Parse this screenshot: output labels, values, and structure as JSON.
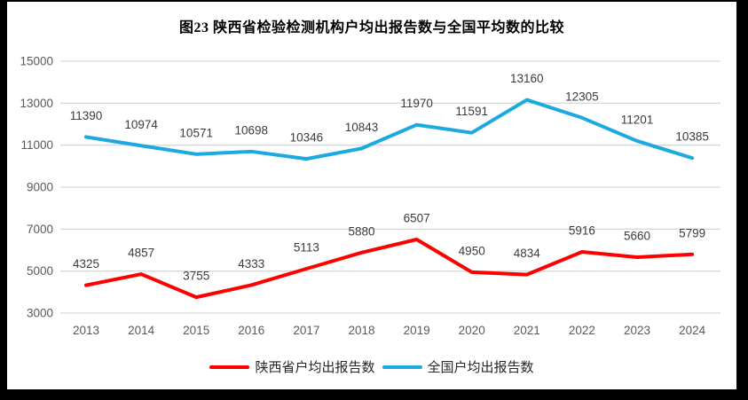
{
  "chart_data": {
    "type": "line",
    "title": "图23 陕西省检验检测机构户均出报告数与全国平均数的比较",
    "categories": [
      "2013",
      "2014",
      "2015",
      "2016",
      "2017",
      "2018",
      "2019",
      "2020",
      "2021",
      "2022",
      "2023",
      "2024"
    ],
    "series": [
      {
        "name": "陕西省户均出报告数",
        "color": "#FE0000",
        "values": [
          4325,
          4857,
          3755,
          4333,
          5113,
          5880,
          6507,
          4950,
          4834,
          5916,
          5660,
          5799
        ]
      },
      {
        "name": "全国户均出报告数",
        "color": "#1CA9E2",
        "values": [
          11390,
          10974,
          10571,
          10698,
          10346,
          10843,
          11970,
          11591,
          13160,
          12305,
          11201,
          10385
        ]
      }
    ],
    "ylim": [
      3000,
      15000
    ],
    "yticks": [
      15000,
      13000,
      11000,
      9000,
      7000,
      5000,
      3000
    ],
    "grid": "horizontal",
    "legend_position": "bottom",
    "data_labels": "shown above each point"
  },
  "colors": {
    "grid": "#D9D9D9",
    "axis_text": "#595959",
    "label_text": "#3B3B3B",
    "background": "#FFFFFF",
    "frame": "#000000"
  }
}
